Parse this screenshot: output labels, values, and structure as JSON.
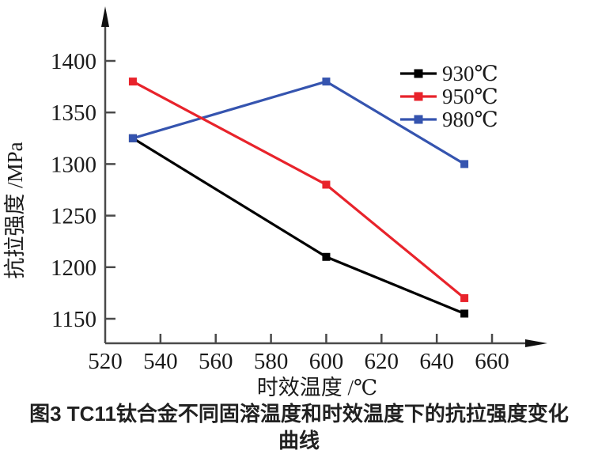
{
  "page": {
    "background": "#ffffff"
  },
  "figure": {
    "caption_line1": "图3 TC11钛合金不同固溶温度和时效温度下的抗拉强度变化",
    "caption_line2": "曲线"
  },
  "chart_data": {
    "type": "line",
    "title": "",
    "xlabel": "时效温度 /℃",
    "ylabel": "抗拉强度 /MPa",
    "x": [
      530,
      600,
      650
    ],
    "series": [
      {
        "name": "930℃",
        "color": "#000000",
        "values": [
          1325,
          1210,
          1155
        ]
      },
      {
        "name": "950℃",
        "color": "#e8232b",
        "values": [
          1380,
          1280,
          1170
        ]
      },
      {
        "name": "980℃",
        "color": "#3554af",
        "values": [
          1325,
          1380,
          1300
        ]
      }
    ],
    "marker": "square",
    "xticks": [
      520,
      540,
      560,
      580,
      600,
      620,
      640,
      660
    ],
    "yticks": [
      1150,
      1200,
      1250,
      1300,
      1350,
      1400
    ],
    "xlim": [
      520,
      678
    ],
    "ylim": [
      1127,
      1436
    ],
    "grid": false,
    "legend_position": "upper right",
    "axis_color": "#4a4a4a",
    "text_color": "#1a1a1a"
  }
}
